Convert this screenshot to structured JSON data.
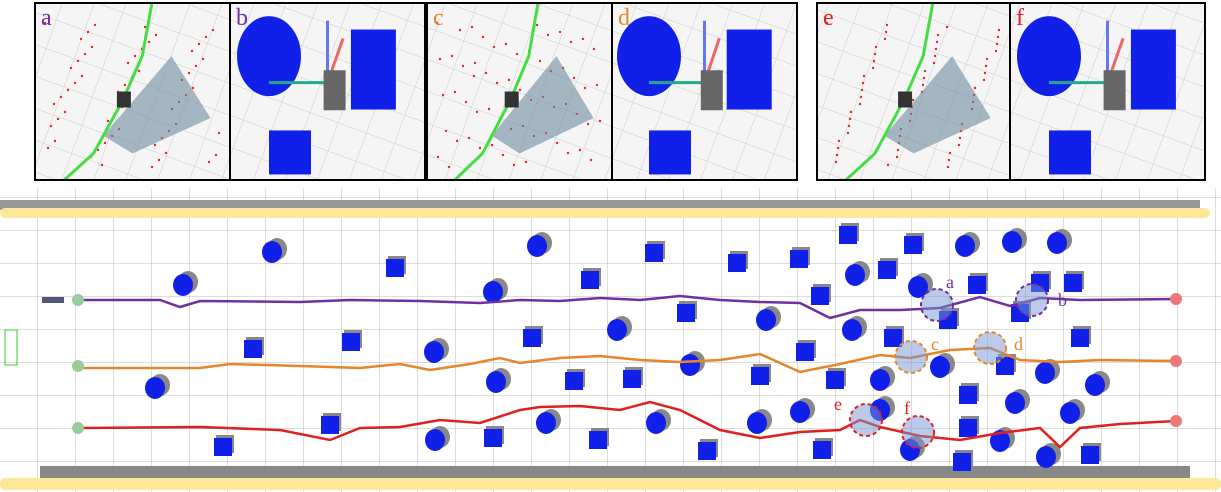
{
  "panels": [
    {
      "label": "a"
    },
    {
      "label": "b"
    },
    {
      "label": "c"
    },
    {
      "label": "d"
    },
    {
      "label": "e"
    },
    {
      "label": "f"
    }
  ],
  "scene": {
    "markers": [
      {
        "label": "a"
      },
      {
        "label": "b"
      },
      {
        "label": "c"
      },
      {
        "label": "d"
      },
      {
        "label": "e"
      },
      {
        "label": "f"
      }
    ]
  }
}
